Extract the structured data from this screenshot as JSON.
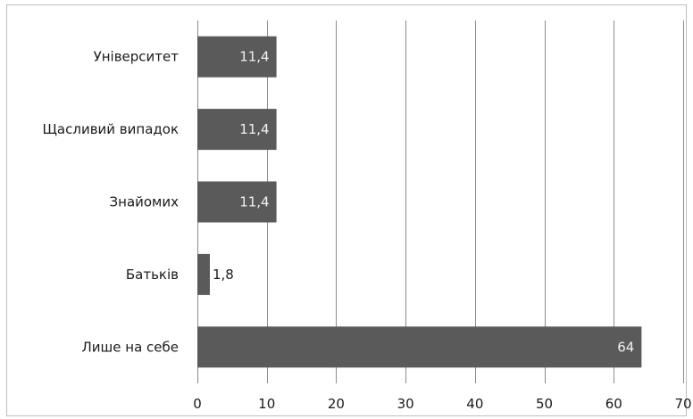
{
  "chart_data": {
    "type": "bar",
    "orientation": "horizontal",
    "categories": [
      "Університет",
      "Щасливий випадок",
      "Знайомих",
      "Батьків",
      "Лише на себе"
    ],
    "values": [
      11.4,
      11.4,
      11.4,
      1.8,
      64
    ],
    "data_labels": [
      "11,4",
      "11,4",
      "11,4",
      "1,8",
      "64"
    ],
    "xlim": [
      0,
      70
    ],
    "xticks": [
      0,
      10,
      20,
      30,
      40,
      50,
      60,
      70
    ],
    "grid": "vertical",
    "legend": "none",
    "title": "",
    "xlabel": "",
    "ylabel": "",
    "colors": {
      "bar": "#5a5a5a",
      "grid": "#8c8c8c",
      "axis": "#8c8c8c"
    }
  }
}
